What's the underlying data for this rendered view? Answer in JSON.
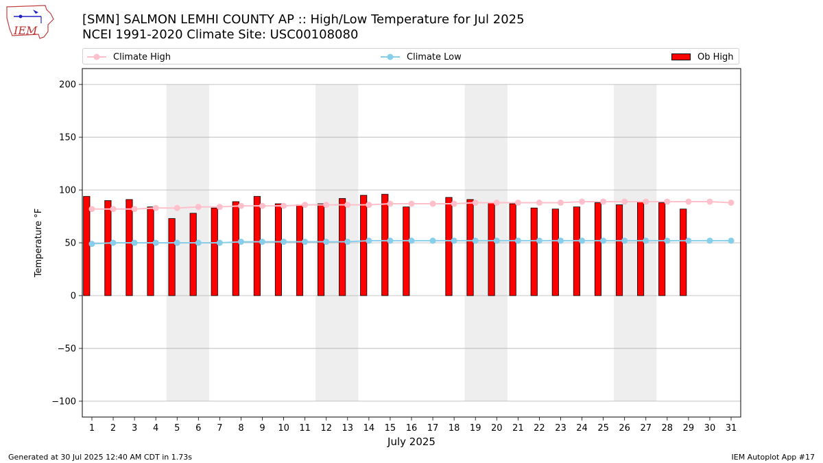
{
  "header": {
    "title_line1": "[SMN] SALMON LEMHI COUNTY AP :: High/Low Temperature for Jul 2025",
    "title_line2": "NCEI 1991-2020 Climate Site: USC00108080",
    "logo_text": "IEM"
  },
  "footer": {
    "generated": "Generated at 30 Jul 2025 12:40 AM CDT in 1.73s",
    "app": "IEM Autoplot App #17"
  },
  "colors": {
    "climate_high": "#ffc0cb",
    "climate_low": "#87ceeb",
    "ob_high": "#ff0000",
    "weekend_band": "#eeeeee",
    "grid": "#b0b0b0"
  },
  "chart_data": {
    "type": "bar",
    "title": "[SMN] SALMON LEMHI COUNTY AP :: High/Low Temperature for Jul 2025",
    "subtitle": "NCEI 1991-2020 Climate Site: USC00108080",
    "xlabel": "July 2025",
    "ylabel": "Temperature °F",
    "ylim": [
      -115,
      215
    ],
    "yticks": [
      -100,
      -50,
      0,
      50,
      100,
      150,
      200
    ],
    "ytick_labels": [
      "−100",
      "−50",
      "0",
      "50",
      "100",
      "150",
      "200"
    ],
    "grid": "horizontal",
    "legend_position": "top",
    "categories": [
      "1",
      "2",
      "3",
      "4",
      "5",
      "6",
      "7",
      "8",
      "9",
      "10",
      "11",
      "12",
      "13",
      "14",
      "15",
      "16",
      "17",
      "18",
      "19",
      "20",
      "21",
      "22",
      "23",
      "24",
      "25",
      "26",
      "27",
      "28",
      "29",
      "30",
      "31"
    ],
    "weekends": [
      [
        5,
        6
      ],
      [
        12,
        13
      ],
      [
        19,
        20
      ],
      [
        26,
        27
      ]
    ],
    "series": [
      {
        "name": "Ob High",
        "kind": "bar",
        "values": [
          94,
          90,
          91,
          84,
          73,
          78,
          83,
          89,
          94,
          87,
          86,
          87,
          92,
          95,
          96,
          84,
          null,
          93,
          91,
          88,
          87,
          83,
          82,
          84,
          88,
          86,
          89,
          88,
          82,
          null,
          null
        ]
      },
      {
        "name": "Climate High",
        "kind": "line",
        "values": [
          82,
          82,
          82,
          83,
          83,
          84,
          84,
          85,
          85,
          85,
          86,
          86,
          86,
          86,
          87,
          87,
          87,
          87,
          88,
          88,
          88,
          88,
          88,
          89,
          89,
          89,
          89,
          89,
          89,
          89,
          88
        ]
      },
      {
        "name": "Climate Low",
        "kind": "line",
        "values": [
          49,
          50,
          50,
          50,
          50,
          50,
          50,
          51,
          51,
          51,
          51,
          51,
          51,
          52,
          52,
          52,
          52,
          52,
          52,
          52,
          52,
          52,
          52,
          52,
          52,
          52,
          52,
          52,
          52,
          52,
          52
        ]
      }
    ],
    "legend": {
      "climate_high": "Climate High",
      "climate_low": "Climate Low",
      "ob_high": "Ob High"
    }
  }
}
